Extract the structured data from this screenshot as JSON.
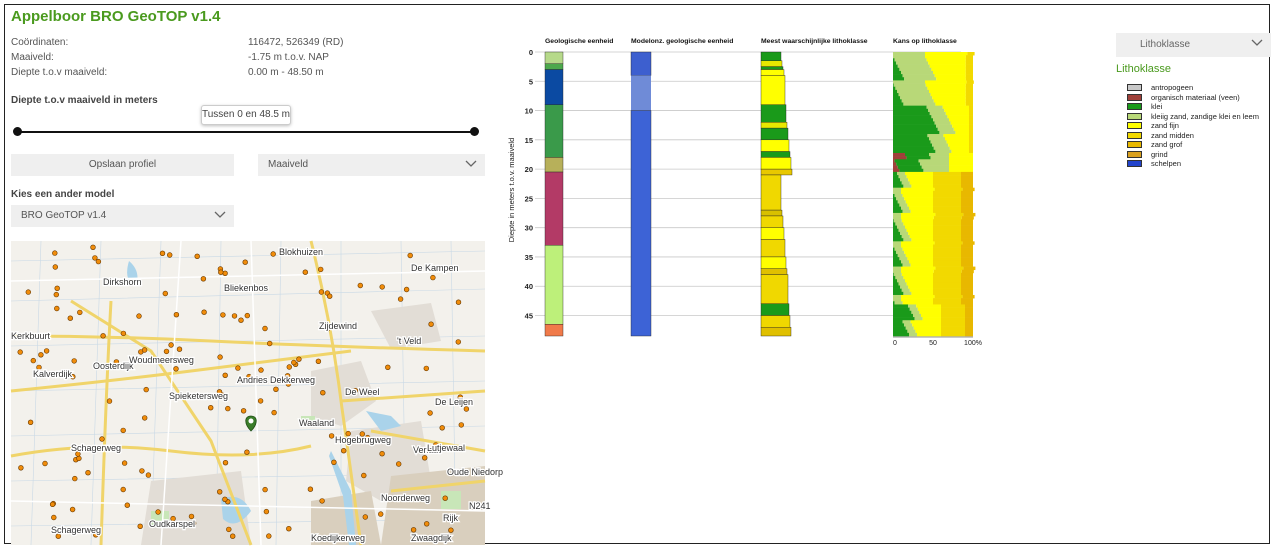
{
  "app": {
    "title": "Appelboor BRO GeoTOP v1.4"
  },
  "info": {
    "coord_label": "Coördinaten:",
    "coord_value": "116472, 526349 (RD)",
    "maaiveld_label": "Maaiveld:",
    "maaiveld_value": "-1.75 m t.o.v. NAP",
    "depth_label": "Diepte t.o.v maaiveld:",
    "depth_value": "0.00 m - 48.50 m"
  },
  "slider": {
    "heading": "Diepte t.o.v maaiveld in meters",
    "tooltip": "Tussen 0 en 48.5 m"
  },
  "buttons": {
    "save_profile": "Opslaan profiel",
    "reference_select": "Maaiveld"
  },
  "model": {
    "heading": "Kies een ander model",
    "select_value": "BRO GeoTOP v1.4"
  },
  "map": {
    "labels": [
      "Blokhuizen",
      "Dirkshorn",
      "Bliekenbos",
      "De Kampen",
      "Zijdewind",
      "Kerkbuurt",
      "Oosterdijk",
      "Woudmeersweg",
      "'t Veld",
      "Kalverdijk",
      "Spieketersweg",
      "Andries Dekkerweg",
      "De Weel",
      "De Leijen",
      "Waaland",
      "Schagerweg",
      "Hogebrugweg",
      "Verlaat",
      "Oude Niedorp",
      "Lutjewaal",
      "N241",
      "Oudkarspel",
      "Rijk",
      "Zwaagdijk",
      "Koedijkerweg",
      "Schagerweg",
      "Noorderweg"
    ]
  },
  "chart_data": {
    "type": "column-profile",
    "ylabel": "Diepte in meters t.o.v. maaiveld",
    "ylim": [
      0,
      48.5
    ],
    "yticks": [
      0,
      5,
      10,
      15,
      20,
      25,
      30,
      35,
      40,
      45
    ],
    "columns": [
      {
        "name": "Geologische eenheid",
        "segments": [
          [
            0,
            2,
            "#b6d98a"
          ],
          [
            2,
            3,
            "#4ca84c"
          ],
          [
            3,
            9,
            "#0b4aa2"
          ],
          [
            9,
            18,
            "#3a9a4a"
          ],
          [
            18,
            20.5,
            "#b7b05a"
          ],
          [
            20.5,
            33,
            "#b33a66"
          ],
          [
            33,
            46.5,
            "#bdf07a"
          ],
          [
            46.5,
            48.5,
            "#f07a4a"
          ]
        ]
      },
      {
        "name": "Modelonz. geologische eenheid",
        "segments": [
          [
            0,
            4,
            "#3d5fcf"
          ],
          [
            4,
            10,
            "#6f8bd7"
          ],
          [
            10,
            48.5,
            "#3d63d6"
          ]
        ]
      },
      {
        "name": "Meest waarschijnlijke lithoklasse",
        "segments": [
          [
            0,
            1.5,
            "#1a9a1a"
          ],
          [
            1.5,
            2.5,
            "#e8e800"
          ],
          [
            2.5,
            3,
            "#1a9a1a"
          ],
          [
            3,
            4,
            "#ffff00"
          ],
          [
            4,
            9,
            "#ffff00"
          ],
          [
            9,
            12,
            "#1a9a1a"
          ],
          [
            12,
            13,
            "#e8e800"
          ],
          [
            13,
            15,
            "#1a9a1a"
          ],
          [
            15,
            17,
            "#ffff00"
          ],
          [
            17,
            18,
            "#1a9a1a"
          ],
          [
            18,
            20,
            "#ffff00"
          ],
          [
            20,
            21,
            "#e8c800"
          ],
          [
            21,
            27,
            "#f0d800"
          ],
          [
            27,
            28,
            "#d8c000"
          ],
          [
            28,
            30,
            "#f0d800"
          ],
          [
            30,
            32,
            "#ffff00"
          ],
          [
            32,
            35,
            "#f0d800"
          ],
          [
            35,
            37,
            "#ffff00"
          ],
          [
            37,
            38,
            "#e0c000"
          ],
          [
            38,
            43,
            "#f0d800"
          ],
          [
            43,
            45,
            "#1a9a1a"
          ],
          [
            45,
            47,
            "#f0d800"
          ],
          [
            47,
            48.5,
            "#e0c000"
          ]
        ]
      },
      {
        "name": "Kans op lithoklasse"
      }
    ],
    "kans_xticks": [
      "0",
      "50",
      "100%"
    ]
  },
  "legend": {
    "dropdown": "Lithoklasse",
    "title": "Lithoklasse",
    "items": [
      {
        "label": "antropogeen",
        "color": "#c8c8c8"
      },
      {
        "label": "organisch materiaal (veen)",
        "color": "#a0413a"
      },
      {
        "label": "klei",
        "color": "#1a9a1a"
      },
      {
        "label": "kleiig zand, zandige klei en leem",
        "color": "#b8d878"
      },
      {
        "label": "zand fijn",
        "color": "#ffff00"
      },
      {
        "label": "zand midden",
        "color": "#f2d900"
      },
      {
        "label": "zand grof",
        "color": "#e8b800"
      },
      {
        "label": "grind",
        "color": "#d8a020"
      },
      {
        "label": "schelpen",
        "color": "#2244cc"
      }
    ]
  }
}
